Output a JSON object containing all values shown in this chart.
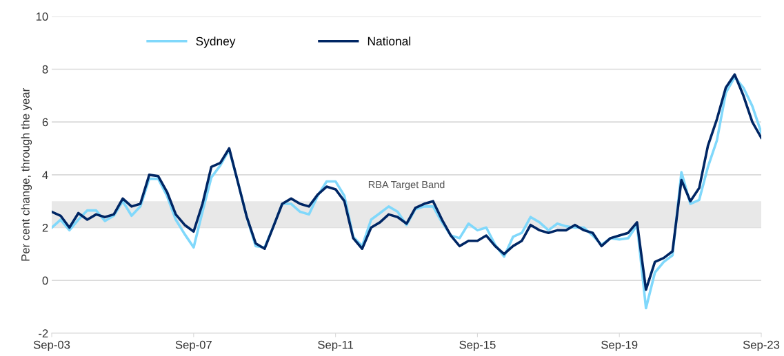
{
  "chart_data": {
    "type": "line",
    "ylabel": "Per cent change, through the year",
    "x": [
      "2003-09",
      "2003-12",
      "2004-03",
      "2004-06",
      "2004-09",
      "2004-12",
      "2005-03",
      "2005-06",
      "2005-09",
      "2005-12",
      "2006-03",
      "2006-06",
      "2006-09",
      "2006-12",
      "2007-03",
      "2007-06",
      "2007-09",
      "2007-12",
      "2008-03",
      "2008-06",
      "2008-09",
      "2008-12",
      "2009-03",
      "2009-06",
      "2009-09",
      "2009-12",
      "2010-03",
      "2010-06",
      "2010-09",
      "2010-12",
      "2011-03",
      "2011-06",
      "2011-09",
      "2011-12",
      "2012-03",
      "2012-06",
      "2012-09",
      "2012-12",
      "2013-03",
      "2013-06",
      "2013-09",
      "2013-12",
      "2014-03",
      "2014-06",
      "2014-09",
      "2014-12",
      "2015-03",
      "2015-06",
      "2015-09",
      "2015-12",
      "2016-03",
      "2016-06",
      "2016-09",
      "2016-12",
      "2017-03",
      "2017-06",
      "2017-09",
      "2017-12",
      "2018-03",
      "2018-06",
      "2018-09",
      "2018-12",
      "2019-03",
      "2019-06",
      "2019-09",
      "2019-12",
      "2020-03",
      "2020-06",
      "2020-09",
      "2020-12",
      "2021-03",
      "2021-06",
      "2021-09",
      "2021-12",
      "2022-03",
      "2022-06",
      "2022-09",
      "2022-12",
      "2023-03",
      "2023-06",
      "2023-09"
    ],
    "series": [
      {
        "name": "Sydney",
        "color": "#80d8fb",
        "values": [
          2.0,
          2.3,
          1.9,
          2.3,
          2.65,
          2.65,
          2.25,
          2.45,
          3.0,
          2.45,
          2.8,
          3.85,
          3.85,
          3.2,
          2.3,
          1.75,
          1.25,
          2.6,
          3.9,
          4.35,
          4.95,
          3.7,
          2.4,
          1.3,
          1.25,
          2.05,
          2.9,
          2.9,
          2.6,
          2.5,
          3.2,
          3.75,
          3.75,
          3.2,
          1.65,
          1.3,
          2.3,
          2.55,
          2.8,
          2.6,
          2.1,
          2.7,
          2.8,
          2.8,
          2.2,
          1.7,
          1.6,
          2.15,
          1.9,
          2.0,
          1.35,
          0.9,
          1.65,
          1.8,
          2.4,
          2.2,
          1.9,
          2.15,
          2.05,
          2.0,
          2.0,
          1.7,
          1.35,
          1.6,
          1.55,
          1.6,
          2.1,
          -1.05,
          0.3,
          0.7,
          0.95,
          4.1,
          2.9,
          3.05,
          4.3,
          5.3,
          7.1,
          7.7,
          7.3,
          6.6,
          5.6
        ]
      },
      {
        "name": "National",
        "color": "#002664",
        "values": [
          2.6,
          2.45,
          2.0,
          2.55,
          2.3,
          2.5,
          2.4,
          2.5,
          3.1,
          2.8,
          2.9,
          4.0,
          3.95,
          3.35,
          2.5,
          2.1,
          1.85,
          2.9,
          4.3,
          4.45,
          5.0,
          3.7,
          2.4,
          1.4,
          1.2,
          2.05,
          2.9,
          3.1,
          2.9,
          2.8,
          3.25,
          3.55,
          3.45,
          3.0,
          1.6,
          1.2,
          2.0,
          2.2,
          2.5,
          2.4,
          2.15,
          2.75,
          2.9,
          3.0,
          2.3,
          1.7,
          1.3,
          1.5,
          1.5,
          1.7,
          1.3,
          1.0,
          1.3,
          1.5,
          2.1,
          1.9,
          1.8,
          1.9,
          1.9,
          2.1,
          1.9,
          1.8,
          1.3,
          1.6,
          1.7,
          1.8,
          2.2,
          -0.35,
          0.7,
          0.85,
          1.1,
          3.8,
          3.0,
          3.5,
          5.1,
          6.1,
          7.3,
          7.8,
          7.0,
          6.0,
          5.4
        ]
      }
    ],
    "xlim": [
      "2003-09",
      "2023-09"
    ],
    "xticks": [
      {
        "value": "2003-09",
        "label": "Sep-03"
      },
      {
        "value": "2007-09",
        "label": "Sep-07"
      },
      {
        "value": "2011-09",
        "label": "Sep-11"
      },
      {
        "value": "2015-09",
        "label": "Sep-15"
      },
      {
        "value": "2019-09",
        "label": "Sep-19"
      },
      {
        "value": "2023-09",
        "label": "Sep-23"
      }
    ],
    "ylim": [
      -2,
      10
    ],
    "yticks": [
      -2,
      0,
      2,
      4,
      6,
      8,
      10
    ],
    "bands": [
      {
        "axis": "y",
        "from": 2,
        "to": 3,
        "label": "RBA Target Band",
        "color": "#e8e8e8"
      }
    ],
    "grid": "y",
    "legend": "top left",
    "line_style": "solid",
    "marker": "none"
  }
}
